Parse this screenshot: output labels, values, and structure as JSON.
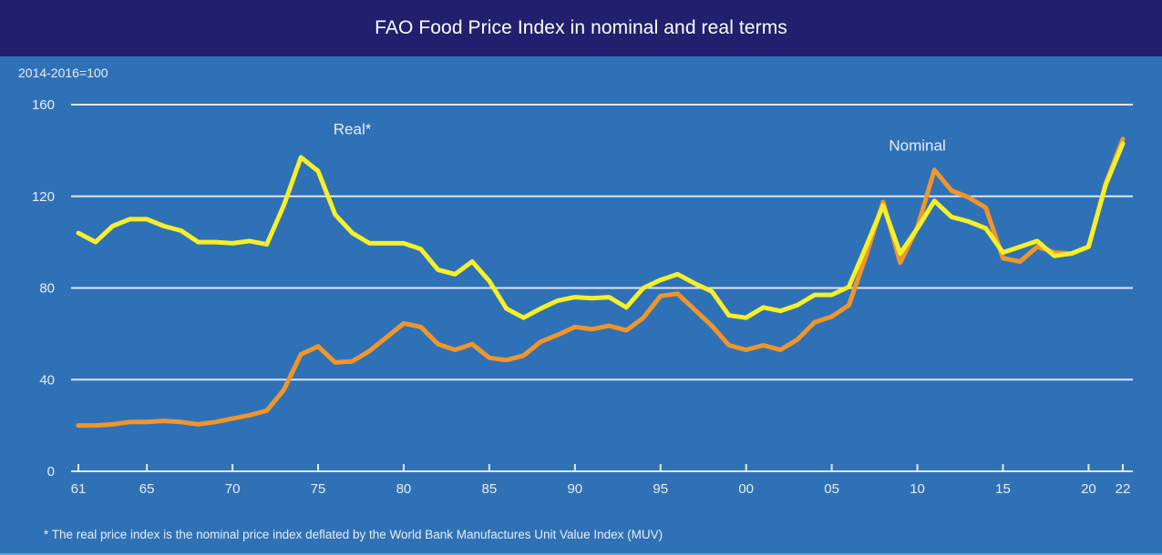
{
  "header": {
    "title": "FAO Food Price Index in nominal and real terms"
  },
  "chart_data": {
    "type": "line",
    "title": "FAO Food Price Index in nominal and real terms",
    "ylabel": "2014-2016=100",
    "xlabel": "",
    "ylim": [
      0,
      160
    ],
    "yticks": [
      0,
      40,
      80,
      120,
      160
    ],
    "ytick_labels": [
      "0",
      "40",
      "80",
      "120",
      "160"
    ],
    "xlim": [
      1961,
      2022
    ],
    "xticks": [
      1961,
      1965,
      1970,
      1975,
      1980,
      1985,
      1990,
      1995,
      2000,
      2005,
      2010,
      2015,
      2020,
      2022
    ],
    "xtick_labels": [
      "61",
      "65",
      "70",
      "75",
      "80",
      "85",
      "90",
      "95",
      "00",
      "05",
      "10",
      "15",
      "20",
      "22"
    ],
    "grid": "horizontal",
    "x": [
      1961,
      1962,
      1963,
      1964,
      1965,
      1966,
      1967,
      1968,
      1969,
      1970,
      1971,
      1972,
      1973,
      1974,
      1975,
      1976,
      1977,
      1978,
      1979,
      1980,
      1981,
      1982,
      1983,
      1984,
      1985,
      1986,
      1987,
      1988,
      1989,
      1990,
      1991,
      1992,
      1993,
      1994,
      1995,
      1996,
      1997,
      1998,
      1999,
      2000,
      2001,
      2002,
      2003,
      2004,
      2005,
      2006,
      2007,
      2008,
      2009,
      2010,
      2011,
      2012,
      2013,
      2014,
      2015,
      2016,
      2017,
      2018,
      2019,
      2020,
      2021,
      2022
    ],
    "series": [
      {
        "name": "Nominal",
        "label": "Nominal",
        "color": "#f0952a",
        "values": [
          20,
          20,
          20.5,
          21.5,
          21.5,
          22,
          21.5,
          20.5,
          21.5,
          23,
          24.5,
          26.5,
          35.5,
          51,
          54.5,
          47.5,
          48,
          52.5,
          58.5,
          64.5,
          63,
          55.5,
          53,
          55.5,
          49.5,
          48.5,
          50.5,
          56.5,
          59.5,
          63,
          62,
          63.5,
          61.5,
          67,
          76.5,
          77.5,
          70.5,
          63.5,
          55,
          53,
          55,
          53,
          57.5,
          65,
          67.5,
          72.5,
          94,
          117.5,
          91,
          106.5,
          131.5,
          122.5,
          119.5,
          115,
          93,
          91.5,
          98,
          95.5,
          95,
          98,
          125.5,
          145
        ]
      },
      {
        "name": "Real*",
        "label": "Real*",
        "color": "#f6ef2a",
        "values": [
          104,
          100,
          107,
          110,
          110,
          107,
          105,
          100,
          100,
          99.5,
          100.5,
          99,
          116,
          137,
          131,
          112,
          104,
          99.5,
          99.5,
          99.5,
          97,
          88,
          86,
          91.5,
          83,
          71,
          67,
          71,
          74.5,
          76,
          75.5,
          76,
          71.5,
          80,
          83.5,
          86,
          82,
          78.5,
          68,
          67,
          71.5,
          70,
          72.5,
          77,
          77,
          80.5,
          98,
          116,
          95,
          106,
          118,
          111,
          109,
          106,
          95.5,
          98,
          100.5,
          94,
          95,
          98,
          125,
          143
        ]
      }
    ],
    "annotations": [
      {
        "text": "Real*",
        "series": "Real*",
        "near_x": 1977,
        "near_y": 147
      },
      {
        "text": "Nominal",
        "series": "Nominal",
        "near_x": 2010,
        "near_y": 140
      }
    ],
    "footnote": "* The real price index is the nominal price index deflated by the World Bank Manufactures Unit Value Index (MUV)"
  },
  "colors": {
    "header_bg": "#20206e",
    "plot_bg": "#2f71b6",
    "grid": "#dce8f5",
    "text": "#e8eef7"
  }
}
